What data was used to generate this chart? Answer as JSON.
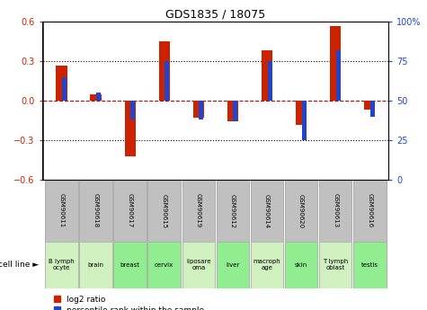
{
  "title": "GDS1835 / 18075",
  "samples": [
    "GSM90611",
    "GSM90618",
    "GSM90617",
    "GSM90615",
    "GSM90619",
    "GSM90612",
    "GSM90614",
    "GSM90620",
    "GSM90613",
    "GSM90616"
  ],
  "cell_lines": [
    "B lymph\nocyte",
    "brain",
    "breast",
    "cervix",
    "liposare\noma",
    "liver",
    "macroph\nage",
    "skin",
    "T lymph\noblast",
    "testis"
  ],
  "cell_line_colors": [
    "#d0f0c0",
    "#d0f0c0",
    "#90ee90",
    "#90ee90",
    "#d0f0c0",
    "#90ee90",
    "#d0f0c0",
    "#90ee90",
    "#d0f0c0",
    "#90ee90"
  ],
  "log2_ratio": [
    0.27,
    0.05,
    -0.42,
    0.45,
    -0.13,
    -0.155,
    0.38,
    -0.18,
    0.57,
    -0.07
  ],
  "percentile_rank": [
    65,
    55,
    38,
    75,
    38,
    37,
    75,
    25,
    82,
    40
  ],
  "ylim_left": [
    -0.6,
    0.6
  ],
  "ylim_right": [
    0,
    100
  ],
  "yticks_left": [
    -0.6,
    -0.3,
    0.0,
    0.3,
    0.6
  ],
  "yticks_right": [
    0,
    25,
    50,
    75,
    100
  ],
  "bar_color_red": "#cc2200",
  "bar_color_blue": "#2244cc",
  "bg_color_label_gray": "#c0c0c0",
  "zero_line_color": "#cc0000",
  "grid_color": "#000000",
  "bar_width": 0.32,
  "blue_bar_width": 0.13
}
